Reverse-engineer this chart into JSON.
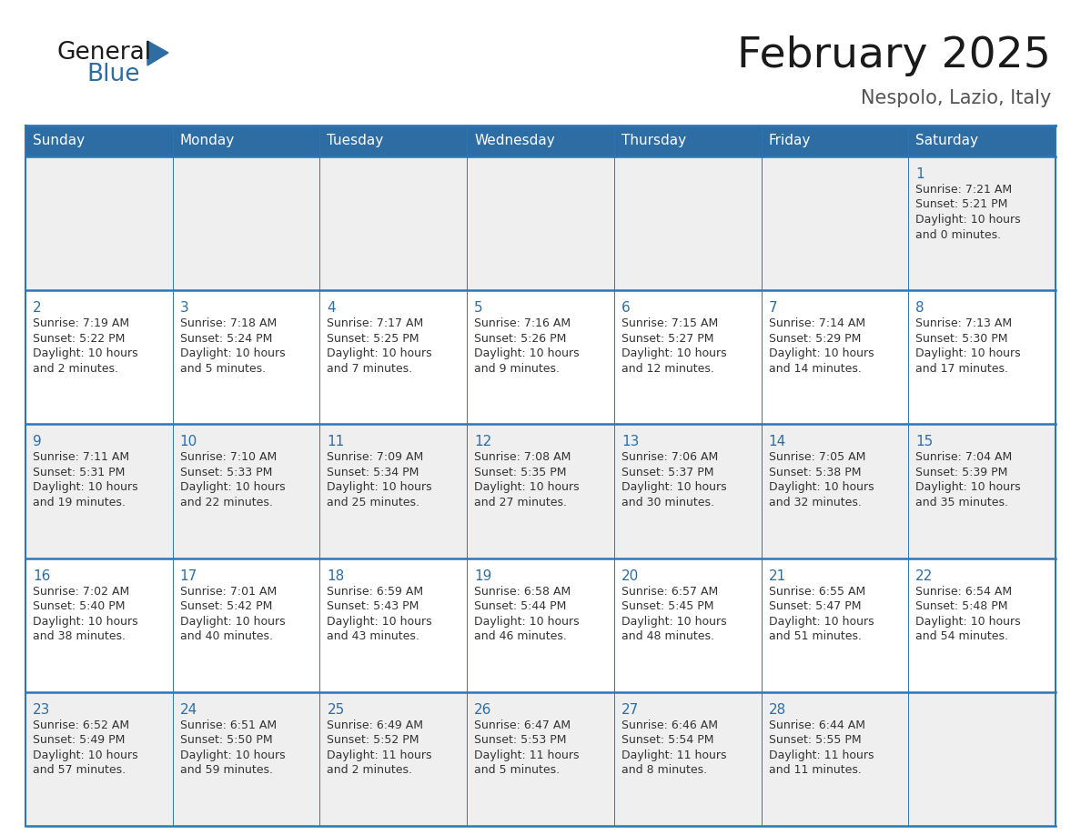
{
  "title": "February 2025",
  "subtitle": "Nespolo, Lazio, Italy",
  "header_bg": "#2E6DA4",
  "header_text_color": "#FFFFFF",
  "cell_bg_odd": "#EFEFEF",
  "cell_bg_even": "#FFFFFF",
  "border_color": "#2E75B6",
  "days_of_week": [
    "Sunday",
    "Monday",
    "Tuesday",
    "Wednesday",
    "Thursday",
    "Friday",
    "Saturday"
  ],
  "title_color": "#1a1a1a",
  "subtitle_color": "#555555",
  "day_num_color": "#2E6DA4",
  "text_color": "#333333",
  "calendar_data": [
    [
      null,
      null,
      null,
      null,
      null,
      null,
      {
        "day": "1",
        "sunrise": "7:21 AM",
        "sunset": "5:21 PM",
        "daylight1": "Daylight: 10 hours",
        "daylight2": "and 0 minutes."
      }
    ],
    [
      {
        "day": "2",
        "sunrise": "7:19 AM",
        "sunset": "5:22 PM",
        "daylight1": "Daylight: 10 hours",
        "daylight2": "and 2 minutes."
      },
      {
        "day": "3",
        "sunrise": "7:18 AM",
        "sunset": "5:24 PM",
        "daylight1": "Daylight: 10 hours",
        "daylight2": "and 5 minutes."
      },
      {
        "day": "4",
        "sunrise": "7:17 AM",
        "sunset": "5:25 PM",
        "daylight1": "Daylight: 10 hours",
        "daylight2": "and 7 minutes."
      },
      {
        "day": "5",
        "sunrise": "7:16 AM",
        "sunset": "5:26 PM",
        "daylight1": "Daylight: 10 hours",
        "daylight2": "and 9 minutes."
      },
      {
        "day": "6",
        "sunrise": "7:15 AM",
        "sunset": "5:27 PM",
        "daylight1": "Daylight: 10 hours",
        "daylight2": "and 12 minutes."
      },
      {
        "day": "7",
        "sunrise": "7:14 AM",
        "sunset": "5:29 PM",
        "daylight1": "Daylight: 10 hours",
        "daylight2": "and 14 minutes."
      },
      {
        "day": "8",
        "sunrise": "7:13 AM",
        "sunset": "5:30 PM",
        "daylight1": "Daylight: 10 hours",
        "daylight2": "and 17 minutes."
      }
    ],
    [
      {
        "day": "9",
        "sunrise": "7:11 AM",
        "sunset": "5:31 PM",
        "daylight1": "Daylight: 10 hours",
        "daylight2": "and 19 minutes."
      },
      {
        "day": "10",
        "sunrise": "7:10 AM",
        "sunset": "5:33 PM",
        "daylight1": "Daylight: 10 hours",
        "daylight2": "and 22 minutes."
      },
      {
        "day": "11",
        "sunrise": "7:09 AM",
        "sunset": "5:34 PM",
        "daylight1": "Daylight: 10 hours",
        "daylight2": "and 25 minutes."
      },
      {
        "day": "12",
        "sunrise": "7:08 AM",
        "sunset": "5:35 PM",
        "daylight1": "Daylight: 10 hours",
        "daylight2": "and 27 minutes."
      },
      {
        "day": "13",
        "sunrise": "7:06 AM",
        "sunset": "5:37 PM",
        "daylight1": "Daylight: 10 hours",
        "daylight2": "and 30 minutes."
      },
      {
        "day": "14",
        "sunrise": "7:05 AM",
        "sunset": "5:38 PM",
        "daylight1": "Daylight: 10 hours",
        "daylight2": "and 32 minutes."
      },
      {
        "day": "15",
        "sunrise": "7:04 AM",
        "sunset": "5:39 PM",
        "daylight1": "Daylight: 10 hours",
        "daylight2": "and 35 minutes."
      }
    ],
    [
      {
        "day": "16",
        "sunrise": "7:02 AM",
        "sunset": "5:40 PM",
        "daylight1": "Daylight: 10 hours",
        "daylight2": "and 38 minutes."
      },
      {
        "day": "17",
        "sunrise": "7:01 AM",
        "sunset": "5:42 PM",
        "daylight1": "Daylight: 10 hours",
        "daylight2": "and 40 minutes."
      },
      {
        "day": "18",
        "sunrise": "6:59 AM",
        "sunset": "5:43 PM",
        "daylight1": "Daylight: 10 hours",
        "daylight2": "and 43 minutes."
      },
      {
        "day": "19",
        "sunrise": "6:58 AM",
        "sunset": "5:44 PM",
        "daylight1": "Daylight: 10 hours",
        "daylight2": "and 46 minutes."
      },
      {
        "day": "20",
        "sunrise": "6:57 AM",
        "sunset": "5:45 PM",
        "daylight1": "Daylight: 10 hours",
        "daylight2": "and 48 minutes."
      },
      {
        "day": "21",
        "sunrise": "6:55 AM",
        "sunset": "5:47 PM",
        "daylight1": "Daylight: 10 hours",
        "daylight2": "and 51 minutes."
      },
      {
        "day": "22",
        "sunrise": "6:54 AM",
        "sunset": "5:48 PM",
        "daylight1": "Daylight: 10 hours",
        "daylight2": "and 54 minutes."
      }
    ],
    [
      {
        "day": "23",
        "sunrise": "6:52 AM",
        "sunset": "5:49 PM",
        "daylight1": "Daylight: 10 hours",
        "daylight2": "and 57 minutes."
      },
      {
        "day": "24",
        "sunrise": "6:51 AM",
        "sunset": "5:50 PM",
        "daylight1": "Daylight: 10 hours",
        "daylight2": "and 59 minutes."
      },
      {
        "day": "25",
        "sunrise": "6:49 AM",
        "sunset": "5:52 PM",
        "daylight1": "Daylight: 11 hours",
        "daylight2": "and 2 minutes."
      },
      {
        "day": "26",
        "sunrise": "6:47 AM",
        "sunset": "5:53 PM",
        "daylight1": "Daylight: 11 hours",
        "daylight2": "and 5 minutes."
      },
      {
        "day": "27",
        "sunrise": "6:46 AM",
        "sunset": "5:54 PM",
        "daylight1": "Daylight: 11 hours",
        "daylight2": "and 8 minutes."
      },
      {
        "day": "28",
        "sunrise": "6:44 AM",
        "sunset": "5:55 PM",
        "daylight1": "Daylight: 11 hours",
        "daylight2": "and 11 minutes."
      },
      null
    ]
  ],
  "logo_text_general": "General",
  "logo_text_blue": "Blue",
  "header_font_size": 11,
  "day_num_font_size": 11,
  "cell_text_font_size": 9.0,
  "title_font_size": 34,
  "subtitle_font_size": 15
}
